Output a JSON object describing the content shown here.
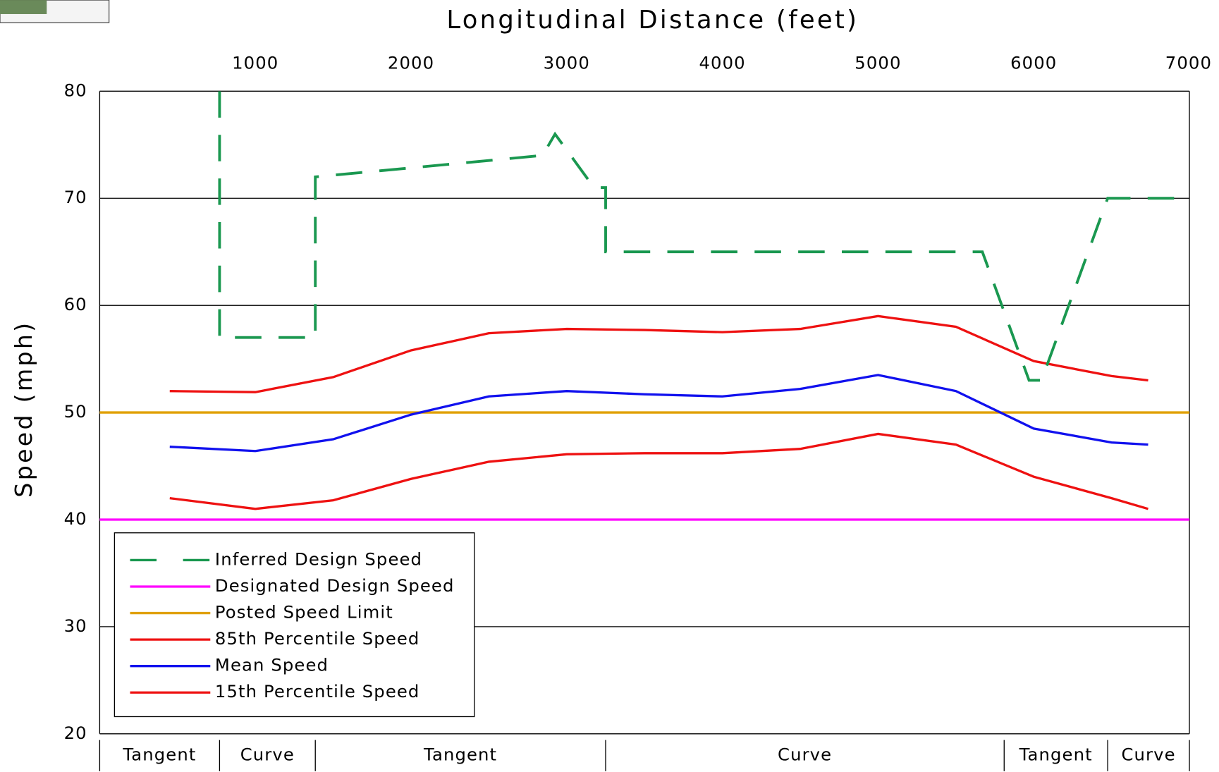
{
  "chart_data": {
    "type": "line",
    "title": "Longitudinal Distance (feet)",
    "y_label": "Speed (mph)",
    "xlim": [
      0,
      7000
    ],
    "xticks": [
      1000,
      2000,
      3000,
      4000,
      5000,
      6000,
      7000
    ],
    "ylim": [
      20,
      80
    ],
    "yticks": [
      20,
      30,
      40,
      50,
      60,
      70,
      80
    ],
    "grid": true,
    "legend": "lower left",
    "series": [
      {
        "name": "Inferred Design Speed",
        "color": "#1a9850",
        "dashed": true,
        "x": [
          770,
          770,
          1385,
          1385,
          2845,
          2925,
          3175,
          3250,
          3250,
          5670,
          5970,
          6050,
          6475,
          7000
        ],
        "values": [
          80,
          57,
          57,
          72,
          74,
          76,
          71,
          71,
          65,
          65,
          53,
          53,
          70,
          70
        ]
      },
      {
        "name": "Designated Design Speed",
        "color": "#ff00ff",
        "x": [
          0,
          7000
        ],
        "values": [
          40,
          40
        ]
      },
      {
        "name": "Posted Speed Limit",
        "color": "#e0a000",
        "x": [
          0,
          7000
        ],
        "values": [
          50,
          50
        ]
      },
      {
        "name": "85th Percentile Speed",
        "color": "#ee1111",
        "x": [
          450,
          1000,
          1500,
          2000,
          2500,
          3000,
          3500,
          4000,
          4500,
          5000,
          5500,
          6000,
          6500,
          6735
        ],
        "values": [
          52,
          51.9,
          53.3,
          55.8,
          57.4,
          57.8,
          57.7,
          57.5,
          57.8,
          59,
          58,
          54.8,
          53.4,
          53
        ]
      },
      {
        "name": "Mean Speed",
        "color": "#1111ee",
        "x": [
          450,
          1000,
          1500,
          2000,
          2500,
          3000,
          3500,
          4000,
          4500,
          5000,
          5500,
          6000,
          6500,
          6735
        ],
        "values": [
          46.8,
          46.4,
          47.5,
          49.8,
          51.5,
          52,
          51.7,
          51.5,
          52.2,
          53.5,
          52,
          48.5,
          47.2,
          47
        ]
      },
      {
        "name": "15th Percentile Speed",
        "color": "#ee1111",
        "x": [
          450,
          1000,
          1500,
          2000,
          2500,
          3000,
          3500,
          4000,
          4500,
          5000,
          5500,
          6000,
          6500,
          6735
        ],
        "values": [
          42,
          41,
          41.8,
          43.8,
          45.4,
          46.1,
          46.2,
          46.2,
          46.6,
          48,
          47,
          44,
          42,
          41
        ]
      }
    ],
    "segments": [
      {
        "label": "Tangent",
        "start": 0,
        "end": 770
      },
      {
        "label": "Curve",
        "start": 770,
        "end": 1385
      },
      {
        "label": "Tangent",
        "start": 1385,
        "end": 3250
      },
      {
        "label": "Curve",
        "start": 3250,
        "end": 5810
      },
      {
        "label": "Tangent",
        "start": 5810,
        "end": 6475
      },
      {
        "label": "Curve",
        "start": 6475,
        "end": 7000
      }
    ]
  }
}
